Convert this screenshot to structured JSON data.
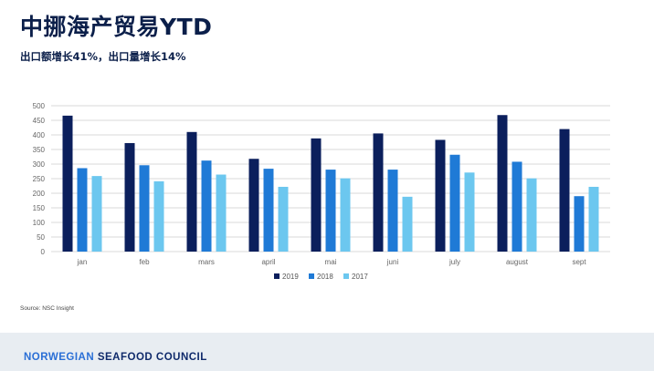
{
  "header": {
    "title": "中挪海产贸易YTD",
    "subtitle": "出口额增长41%，出口量增长14%"
  },
  "chart_data": {
    "type": "bar",
    "categories": [
      "jan",
      "feb",
      "mars",
      "april",
      "mai",
      "juni",
      "july",
      "august",
      "sept"
    ],
    "series": [
      {
        "name": "2019",
        "color": "#0b1f5c",
        "values": [
          466,
          372,
          410,
          318,
          388,
          405,
          383,
          468,
          420
        ]
      },
      {
        "name": "2018",
        "color": "#1f7ad6",
        "values": [
          286,
          296,
          312,
          284,
          281,
          281,
          332,
          308,
          190
        ]
      },
      {
        "name": "2017",
        "color": "#6cc7ef",
        "values": [
          259,
          241,
          264,
          222,
          251,
          188,
          271,
          251,
          222
        ]
      }
    ],
    "ylim": [
      0,
      500
    ],
    "yticks": [
      0,
      50,
      100,
      150,
      200,
      250,
      300,
      350,
      400,
      450,
      500
    ],
    "grid": true,
    "legend_position": "bottom"
  },
  "source": "Source: NSC Insight",
  "footer": {
    "brand_part1": "NORWEGIAN",
    "brand_part2": "SEAFOOD COUNCIL"
  }
}
